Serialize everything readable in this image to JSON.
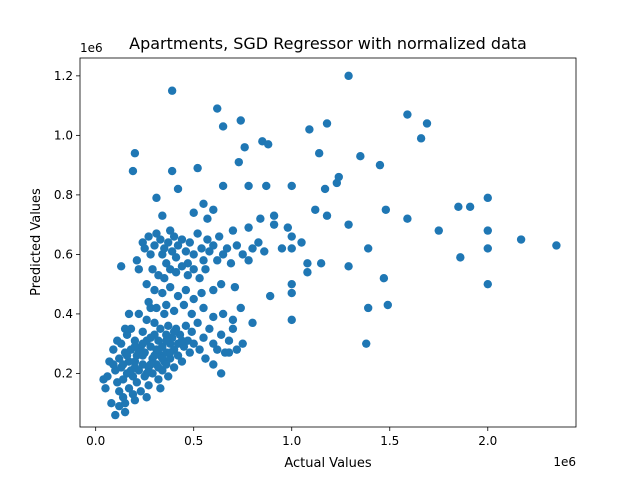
{
  "chart_data": {
    "type": "scatter",
    "title": "Apartments, SGD Regressor with normalized data",
    "xlabel": "Actual Values",
    "ylabel": "Predicted Values",
    "x_offset_label": "1e6",
    "y_offset_label": "1e6",
    "xlim": [
      -0.08,
      2.45
    ],
    "ylim": [
      0.02,
      1.26
    ],
    "x_ticks": [
      0.0,
      0.5,
      1.0,
      1.5,
      2.0
    ],
    "x_tick_labels": [
      "0.0",
      "0.5",
      "1.0",
      "1.5",
      "2.0"
    ],
    "y_ticks": [
      0.2,
      0.4,
      0.6,
      0.8,
      1.0,
      1.2
    ],
    "y_tick_labels": [
      "0.2",
      "0.4",
      "0.6",
      "0.8",
      "1.0",
      "1.2"
    ],
    "grid": false,
    "marker_color": "#1f77b4",
    "units_note": "values in units of 1e6",
    "points": [
      [
        0.04,
        0.18
      ],
      [
        0.05,
        0.15
      ],
      [
        0.06,
        0.19
      ],
      [
        0.07,
        0.24
      ],
      [
        0.08,
        0.1
      ],
      [
        0.09,
        0.28
      ],
      [
        0.1,
        0.06
      ],
      [
        0.1,
        0.21
      ],
      [
        0.11,
        0.17
      ],
      [
        0.12,
        0.25
      ],
      [
        0.12,
        0.14
      ],
      [
        0.13,
        0.3
      ],
      [
        0.13,
        0.22
      ],
      [
        0.14,
        0.18
      ],
      [
        0.14,
        0.12
      ],
      [
        0.15,
        0.27
      ],
      [
        0.15,
        0.07
      ],
      [
        0.16,
        0.33
      ],
      [
        0.16,
        0.2
      ],
      [
        0.17,
        0.15
      ],
      [
        0.17,
        0.24
      ],
      [
        0.18,
        0.28
      ],
      [
        0.18,
        0.35
      ],
      [
        0.19,
        0.19
      ],
      [
        0.19,
        0.13
      ],
      [
        0.2,
        0.22
      ],
      [
        0.2,
        0.31
      ],
      [
        0.21,
        0.26
      ],
      [
        0.21,
        0.17
      ],
      [
        0.22,
        0.4
      ],
      [
        0.22,
        0.21
      ],
      [
        0.23,
        0.29
      ],
      [
        0.23,
        0.14
      ],
      [
        0.24,
        0.34
      ],
      [
        0.24,
        0.23
      ],
      [
        0.25,
        0.19
      ],
      [
        0.25,
        0.27
      ],
      [
        0.26,
        0.31
      ],
      [
        0.26,
        0.38
      ],
      [
        0.27,
        0.22
      ],
      [
        0.27,
        0.16
      ],
      [
        0.28,
        0.29
      ],
      [
        0.28,
        0.42
      ],
      [
        0.29,
        0.25
      ],
      [
        0.29,
        0.2
      ],
      [
        0.3,
        0.33
      ],
      [
        0.3,
        0.37
      ],
      [
        0.31,
        0.23
      ],
      [
        0.31,
        0.28
      ],
      [
        0.32,
        0.18
      ],
      [
        0.32,
        0.31
      ],
      [
        0.33,
        0.26
      ],
      [
        0.33,
        0.35
      ],
      [
        0.34,
        0.21
      ],
      [
        0.34,
        0.29
      ],
      [
        0.35,
        0.4
      ],
      [
        0.35,
        0.24
      ],
      [
        0.36,
        0.33
      ],
      [
        0.36,
        0.27
      ],
      [
        0.37,
        0.19
      ],
      [
        0.37,
        0.36
      ],
      [
        0.38,
        0.3
      ],
      [
        0.38,
        0.25
      ],
      [
        0.39,
        0.32
      ],
      [
        0.4,
        0.28
      ],
      [
        0.4,
        0.22
      ],
      [
        0.41,
        0.35
      ],
      [
        0.42,
        0.3
      ],
      [
        0.42,
        0.26
      ],
      [
        0.43,
        0.33
      ],
      [
        0.44,
        0.24
      ],
      [
        0.45,
        0.29
      ],
      [
        0.46,
        0.36
      ],
      [
        0.47,
        0.31
      ],
      [
        0.48,
        0.27
      ],
      [
        0.49,
        0.34
      ],
      [
        0.5,
        0.3
      ],
      [
        0.52,
        0.37
      ],
      [
        0.53,
        0.28
      ],
      [
        0.55,
        0.32
      ],
      [
        0.56,
        0.25
      ],
      [
        0.58,
        0.35
      ],
      [
        0.6,
        0.3
      ],
      [
        0.62,
        0.28
      ],
      [
        0.64,
        0.33
      ],
      [
        0.66,
        0.27
      ],
      [
        0.68,
        0.31
      ],
      [
        0.7,
        0.35
      ],
      [
        0.72,
        0.28
      ],
      [
        0.75,
        0.3
      ],
      [
        0.14,
        0.23
      ],
      [
        0.16,
        0.26
      ],
      [
        0.18,
        0.21
      ],
      [
        0.2,
        0.24
      ],
      [
        0.22,
        0.27
      ],
      [
        0.24,
        0.3
      ],
      [
        0.26,
        0.2
      ],
      [
        0.28,
        0.23
      ],
      [
        0.3,
        0.26
      ],
      [
        0.32,
        0.22
      ],
      [
        0.34,
        0.25
      ],
      [
        0.36,
        0.23
      ],
      [
        0.38,
        0.27
      ],
      [
        0.2,
        0.29
      ],
      [
        0.24,
        0.26
      ],
      [
        0.28,
        0.32
      ],
      [
        0.32,
        0.28
      ],
      [
        0.36,
        0.31
      ],
      [
        0.4,
        0.34
      ],
      [
        0.44,
        0.31
      ],
      [
        0.21,
        0.58
      ],
      [
        0.22,
        0.55
      ],
      [
        0.24,
        0.64
      ],
      [
        0.25,
        0.62
      ],
      [
        0.27,
        0.66
      ],
      [
        0.28,
        0.6
      ],
      [
        0.3,
        0.63
      ],
      [
        0.31,
        0.67
      ],
      [
        0.33,
        0.65
      ],
      [
        0.34,
        0.6
      ],
      [
        0.35,
        0.62
      ],
      [
        0.36,
        0.57
      ],
      [
        0.37,
        0.64
      ],
      [
        0.38,
        0.68
      ],
      [
        0.39,
        0.61
      ],
      [
        0.4,
        0.66
      ],
      [
        0.41,
        0.59
      ],
      [
        0.42,
        0.63
      ],
      [
        0.44,
        0.65
      ],
      [
        0.46,
        0.61
      ],
      [
        0.47,
        0.57
      ],
      [
        0.48,
        0.64
      ],
      [
        0.5,
        0.6
      ],
      [
        0.52,
        0.67
      ],
      [
        0.54,
        0.62
      ],
      [
        0.55,
        0.58
      ],
      [
        0.57,
        0.65
      ],
      [
        0.58,
        0.61
      ],
      [
        0.6,
        0.63
      ],
      [
        0.62,
        0.58
      ],
      [
        0.63,
        0.66
      ],
      [
        0.65,
        0.6
      ],
      [
        0.67,
        0.62
      ],
      [
        0.69,
        0.57
      ],
      [
        0.72,
        0.63
      ],
      [
        0.75,
        0.6
      ],
      [
        0.78,
        0.58
      ],
      [
        0.8,
        0.62
      ],
      [
        0.83,
        0.64
      ],
      [
        0.86,
        0.61
      ],
      [
        0.29,
        0.55
      ],
      [
        0.32,
        0.53
      ],
      [
        0.35,
        0.52
      ],
      [
        0.38,
        0.55
      ],
      [
        0.41,
        0.54
      ],
      [
        0.44,
        0.56
      ],
      [
        0.47,
        0.53
      ],
      [
        0.5,
        0.55
      ],
      [
        0.53,
        0.52
      ],
      [
        0.56,
        0.55
      ],
      [
        0.26,
        0.5
      ],
      [
        0.3,
        0.48
      ],
      [
        0.34,
        0.47
      ],
      [
        0.38,
        0.49
      ],
      [
        0.42,
        0.46
      ],
      [
        0.46,
        0.48
      ],
      [
        0.5,
        0.45
      ],
      [
        0.54,
        0.47
      ],
      [
        0.6,
        0.48
      ],
      [
        0.64,
        0.5
      ],
      [
        0.27,
        0.44
      ],
      [
        0.31,
        0.42
      ],
      [
        0.36,
        0.43
      ],
      [
        0.4,
        0.41
      ],
      [
        0.45,
        0.43
      ],
      [
        0.49,
        0.4
      ],
      [
        0.55,
        0.42
      ],
      [
        0.6,
        0.39
      ],
      [
        0.65,
        0.4
      ],
      [
        0.7,
        0.38
      ],
      [
        0.19,
        0.88
      ],
      [
        0.2,
        0.94
      ],
      [
        0.31,
        0.79
      ],
      [
        0.34,
        0.73
      ],
      [
        0.39,
        0.88
      ],
      [
        0.39,
        1.15
      ],
      [
        0.42,
        0.82
      ],
      [
        0.5,
        0.74
      ],
      [
        0.52,
        0.89
      ],
      [
        0.55,
        0.77
      ],
      [
        0.57,
        0.72
      ],
      [
        0.6,
        0.75
      ],
      [
        0.62,
        1.09
      ],
      [
        0.65,
        1.03
      ],
      [
        0.65,
        0.83
      ],
      [
        0.7,
        0.68
      ],
      [
        0.73,
        0.91
      ],
      [
        0.74,
        1.05
      ],
      [
        0.76,
        0.96
      ],
      [
        0.78,
        0.83
      ],
      [
        0.78,
        0.69
      ],
      [
        0.84,
        0.72
      ],
      [
        0.85,
        0.98
      ],
      [
        0.87,
        0.83
      ],
      [
        0.88,
        0.97
      ],
      [
        0.91,
        0.7
      ],
      [
        0.91,
        0.73
      ],
      [
        0.95,
        0.62
      ],
      [
        0.98,
        0.69
      ],
      [
        1.0,
        0.83
      ],
      [
        1.0,
        0.66
      ],
      [
        1.0,
        0.62
      ],
      [
        1.0,
        0.5
      ],
      [
        1.0,
        0.47
      ],
      [
        1.0,
        0.38
      ],
      [
        1.05,
        0.64
      ],
      [
        1.08,
        0.54
      ],
      [
        1.08,
        0.57
      ],
      [
        1.09,
        1.02
      ],
      [
        1.12,
        0.75
      ],
      [
        1.14,
        0.94
      ],
      [
        1.15,
        0.57
      ],
      [
        1.17,
        0.82
      ],
      [
        1.18,
        1.04
      ],
      [
        1.18,
        0.73
      ],
      [
        1.23,
        0.84
      ],
      [
        1.24,
        0.86
      ],
      [
        1.29,
        1.2
      ],
      [
        1.29,
        0.56
      ],
      [
        1.29,
        0.7
      ],
      [
        1.35,
        0.93
      ],
      [
        1.38,
        0.3
      ],
      [
        1.39,
        0.42
      ],
      [
        1.39,
        0.62
      ],
      [
        1.45,
        0.9
      ],
      [
        1.47,
        0.52
      ],
      [
        1.48,
        0.75
      ],
      [
        1.49,
        0.43
      ],
      [
        1.59,
        1.07
      ],
      [
        1.59,
        0.72
      ],
      [
        1.66,
        0.99
      ],
      [
        1.69,
        1.04
      ],
      [
        1.75,
        0.68
      ],
      [
        1.85,
        0.76
      ],
      [
        1.86,
        0.59
      ],
      [
        1.91,
        0.76
      ],
      [
        2.0,
        0.79
      ],
      [
        2.0,
        0.68
      ],
      [
        2.0,
        0.62
      ],
      [
        2.0,
        0.5
      ],
      [
        2.17,
        0.65
      ],
      [
        2.35,
        0.63
      ],
      [
        0.89,
        0.46
      ],
      [
        0.8,
        0.37
      ],
      [
        0.74,
        0.42
      ],
      [
        0.71,
        0.49
      ],
      [
        0.68,
        0.27
      ],
      [
        0.6,
        0.23
      ],
      [
        0.56,
        0.25
      ],
      [
        0.64,
        0.2
      ],
      [
        0.12,
        0.09
      ],
      [
        0.2,
        0.11
      ],
      [
        0.26,
        0.12
      ],
      [
        0.15,
        0.1
      ],
      [
        0.33,
        0.15
      ],
      [
        0.09,
        0.23
      ],
      [
        0.11,
        0.31
      ],
      [
        0.17,
        0.4
      ],
      [
        0.15,
        0.35
      ],
      [
        0.13,
        0.56
      ]
    ]
  }
}
